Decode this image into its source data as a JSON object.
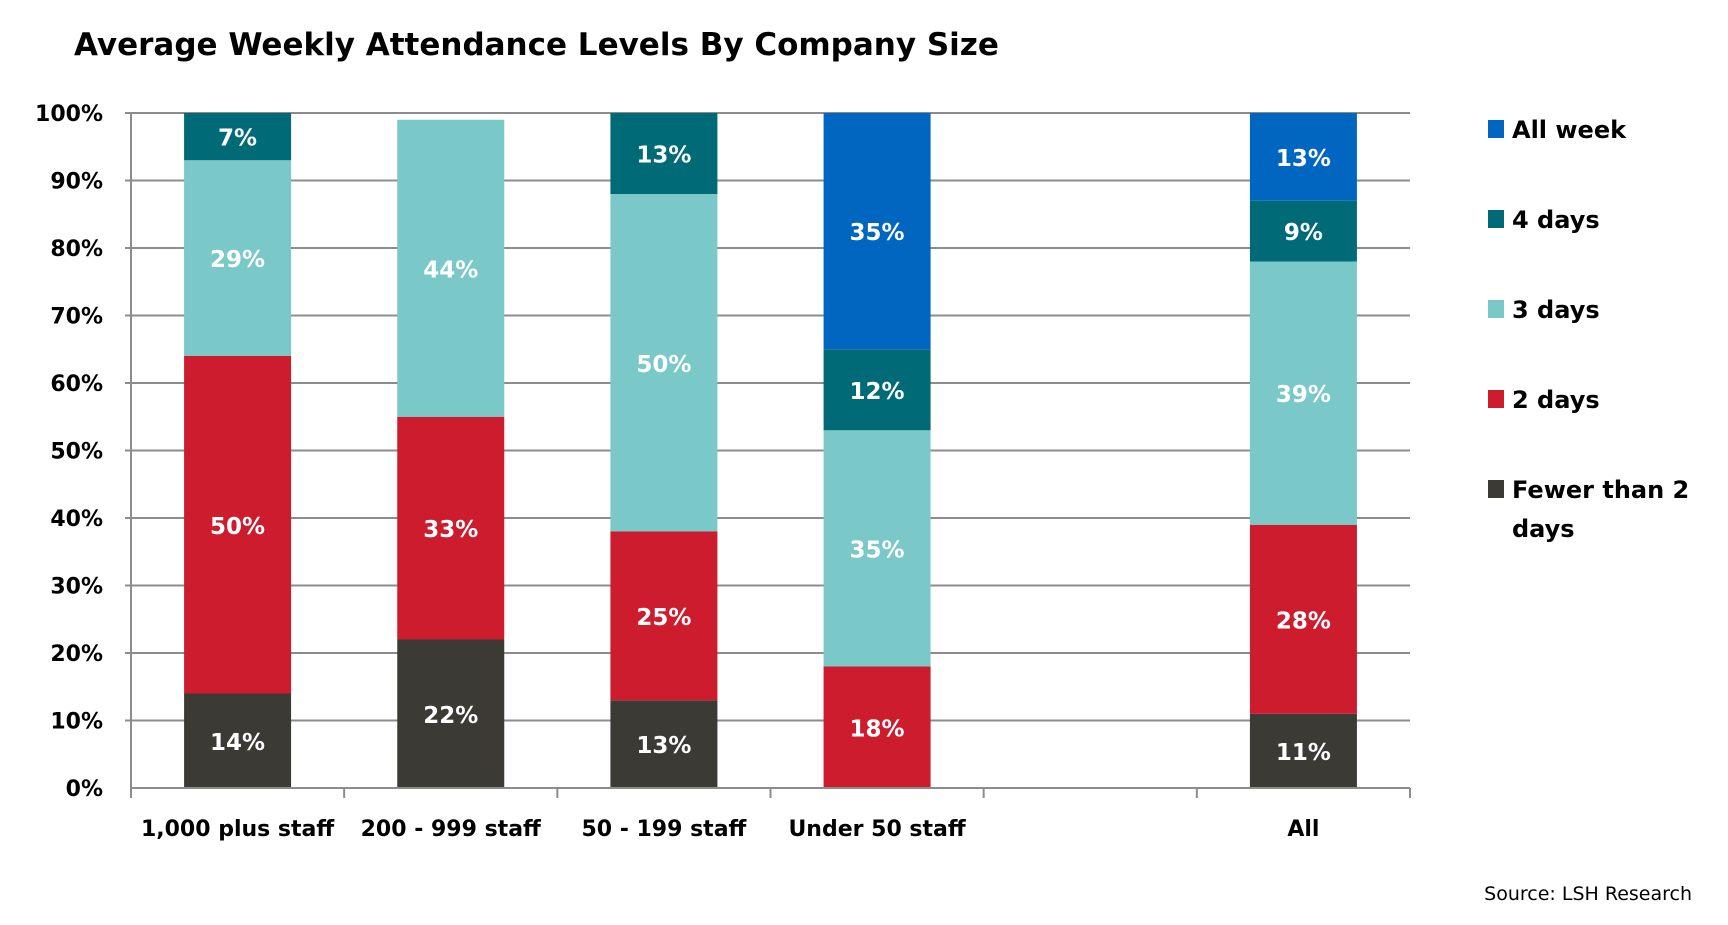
{
  "chart_data": {
    "type": "bar",
    "stacked": true,
    "title": "Average Weekly Attendance Levels By Company Size",
    "xlabel": "",
    "ylabel": "",
    "ylim": [
      0,
      100
    ],
    "yticks": [
      "0%",
      "10%",
      "20%",
      "30%",
      "40%",
      "50%",
      "60%",
      "70%",
      "80%",
      "90%",
      "100%"
    ],
    "grid": true,
    "legend_position": "right",
    "categories": [
      "1,000 plus staff",
      "200 - 999 staff",
      "50 - 199 staff",
      "Under 50 staff",
      "",
      "All"
    ],
    "series": [
      {
        "name": "Fewer than 2 days",
        "color": "#3c3a35",
        "values": [
          14,
          22,
          13,
          0,
          null,
          11
        ]
      },
      {
        "name": "2 days",
        "color": "#cc1c2e",
        "values": [
          50,
          33,
          25,
          18,
          null,
          28
        ]
      },
      {
        "name": "3 days",
        "color": "#7ac8c8",
        "values": [
          29,
          44,
          50,
          35,
          null,
          39
        ]
      },
      {
        "name": "4 days",
        "color": "#006b77",
        "values": [
          7,
          0,
          13,
          12,
          null,
          9
        ]
      },
      {
        "name": "All week",
        "color": "#0066c0",
        "values": [
          0,
          0,
          0,
          35,
          null,
          13
        ]
      }
    ],
    "legend_order": [
      "All week",
      "4 days",
      "3 days",
      "2 days",
      "Fewer than 2 days"
    ],
    "data_label_suffix": "%",
    "source": "Source: LSH Research"
  }
}
